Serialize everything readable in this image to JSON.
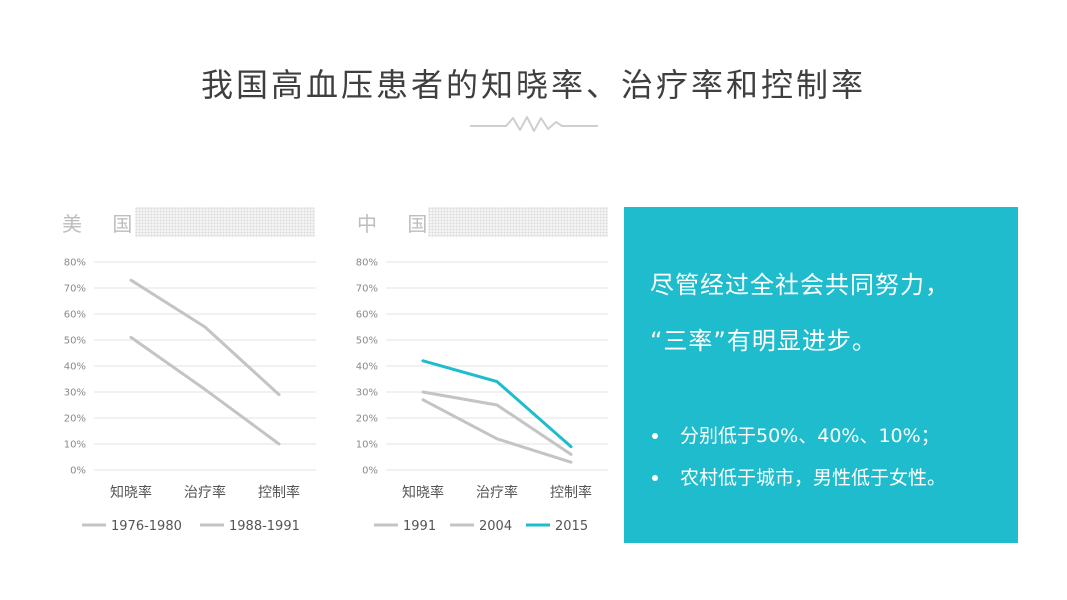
{
  "title": "我国高血压患者的知晓率、治疗率和控制率",
  "colors": {
    "gray_line": "#c4c4c4",
    "teal_line": "#1ebccd",
    "info_bg": "#1ebccd"
  },
  "chart_data": [
    {
      "label": "美 国",
      "type": "line",
      "categories": [
        "知晓率",
        "治疗率",
        "控制率"
      ],
      "y_ticks": [
        "0%",
        "10%",
        "20%",
        "30%",
        "40%",
        "50%",
        "60%",
        "70%",
        "80%"
      ],
      "ylim": [
        0,
        80
      ],
      "grid": true,
      "legend": "bottom",
      "series": [
        {
          "name": "1976-1980",
          "values": [
            51,
            31,
            10
          ],
          "color": "#c4c4c4"
        },
        {
          "name": "1988-1991",
          "values": [
            73,
            55,
            29
          ],
          "color": "#c4c4c4"
        }
      ]
    },
    {
      "label": "中 国",
      "type": "line",
      "categories": [
        "知晓率",
        "治疗率",
        "控制率"
      ],
      "y_ticks": [
        "0%",
        "10%",
        "20%",
        "30%",
        "40%",
        "50%",
        "60%",
        "70%",
        "80%"
      ],
      "ylim": [
        0,
        80
      ],
      "grid": true,
      "legend": "bottom",
      "series": [
        {
          "name": "1991",
          "values": [
            27,
            12,
            3
          ],
          "color": "#c4c4c4"
        },
        {
          "name": "2004",
          "values": [
            30,
            25,
            6
          ],
          "color": "#c4c4c4"
        },
        {
          "name": "2015",
          "values": [
            42,
            34,
            9
          ],
          "color": "#1ebccd"
        }
      ]
    }
  ],
  "info": {
    "headline_lines": [
      "尽管经过全社会共同努力，",
      "“三率”有明显进步。"
    ],
    "points": [
      "分别低于50%、40%、10%；",
      "农村低于城市，男性低于女性。"
    ]
  }
}
